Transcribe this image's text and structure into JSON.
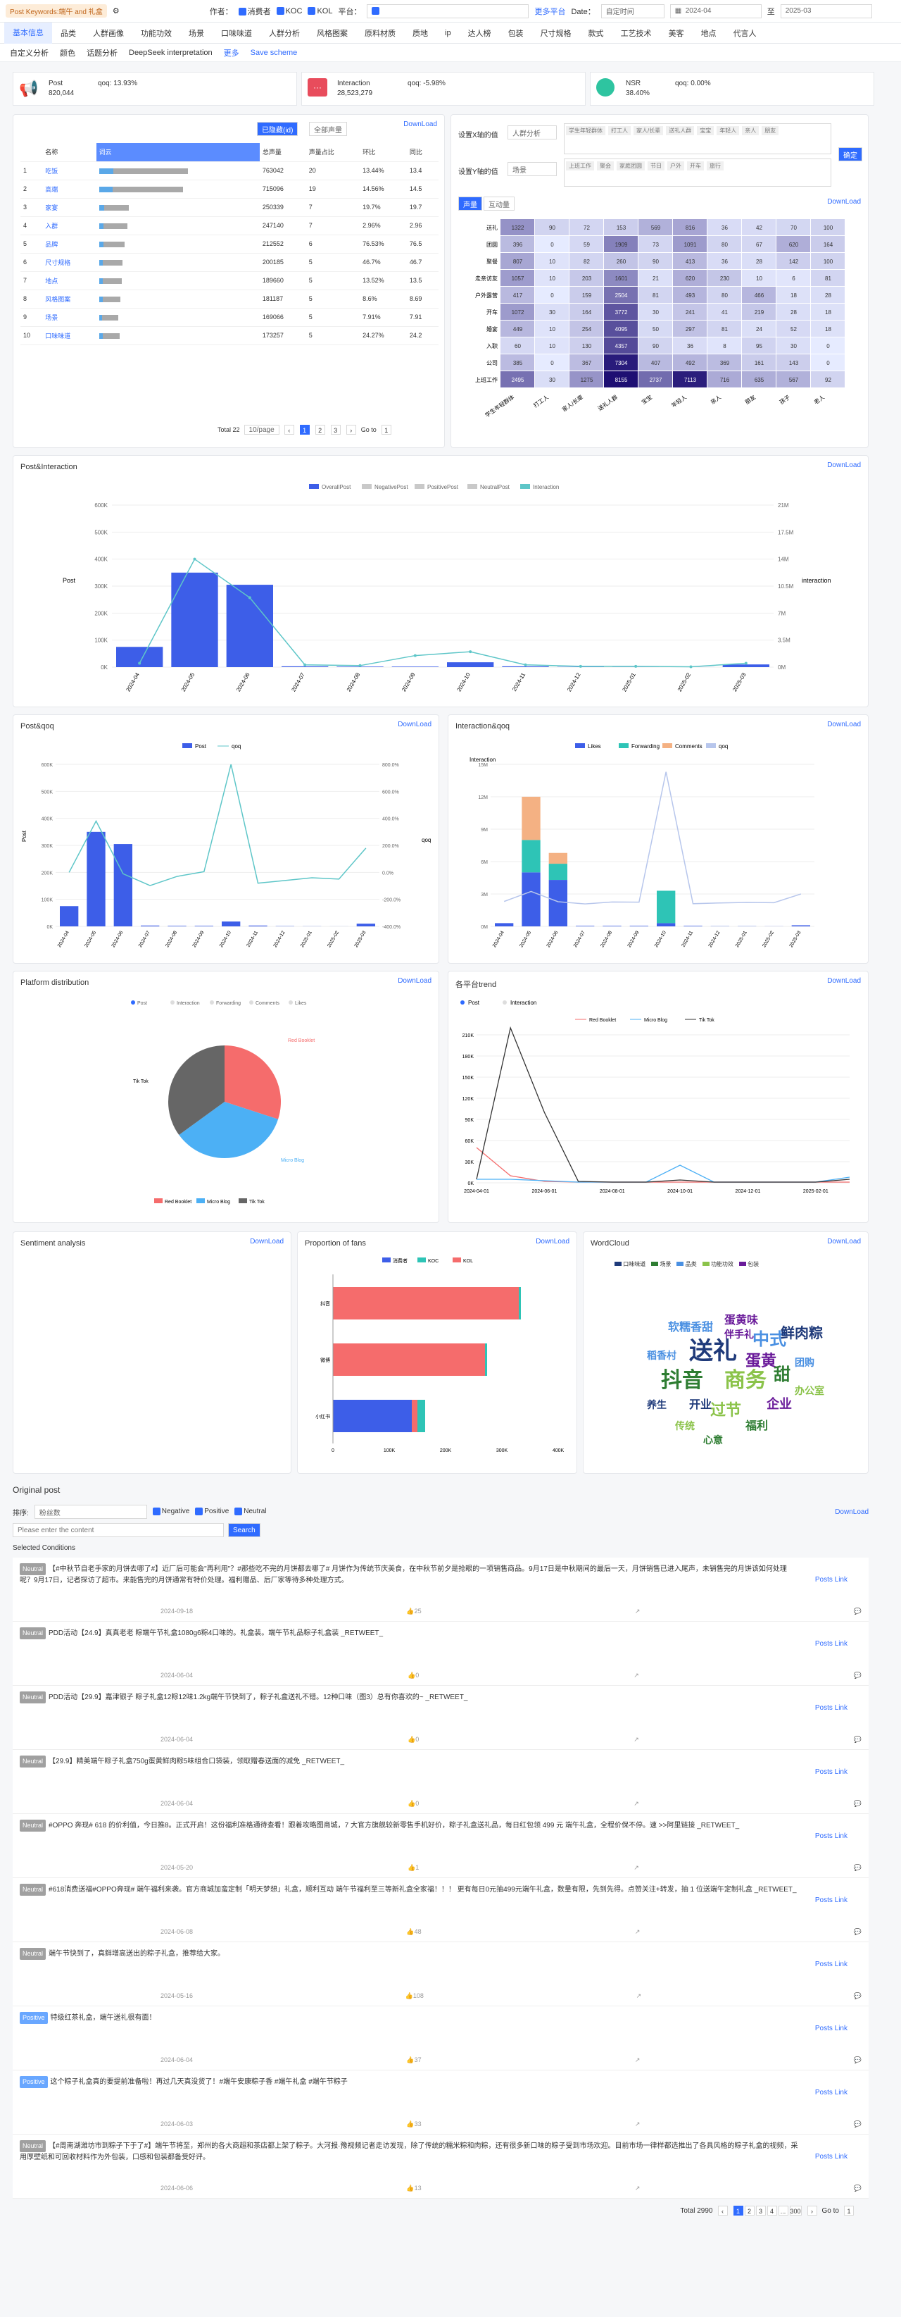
{
  "topbar": {
    "tag": "Post Keywords:端午 and 礼盒",
    "author_label": "作者：",
    "f1": "消费者",
    "f2": "KOC",
    "f3": "KOL",
    "platform_label": "平台：",
    "more_platform": "更多平台",
    "date_label": "Date：",
    "date_mode": "自定时间",
    "date_from": "2024-04",
    "date_to": "至",
    "date_end": "2025-03"
  },
  "tabs": [
    "基本信息",
    "品类",
    "人群画像",
    "功能功效",
    "场景",
    "口味味道",
    "人群分析",
    "风格图案",
    "原料材质",
    "质地",
    "ip",
    "达人榜",
    "包装",
    "尺寸规格",
    "款式",
    "工艺技术",
    "美客",
    "地点",
    "代言人"
  ],
  "subtabs": [
    "自定义分析",
    "颜色",
    "话题分析",
    "DeepSeek interpretation",
    "更多",
    "Save scheme"
  ],
  "kpi": [
    {
      "name": "Post",
      "value": "820,044",
      "qoq": "qoq: 13.93%"
    },
    {
      "name": "Interaction",
      "value": "28,523,279",
      "qoq": "qoq: -5.98%"
    },
    {
      "name": "NSR",
      "value": "38.40%",
      "qoq": "qoq: 0.00%"
    }
  ],
  "rank": {
    "filter1": "已隐藏(id)",
    "filter2": "全部声量",
    "download": "DownLoad",
    "headers": [
      "",
      "名称",
      "词云",
      "总声量",
      "声量占比",
      "环比",
      "同比"
    ],
    "rows": [
      {
        "n": "1",
        "name": "吃饭",
        "v": "763042",
        "share": "20",
        "qoq": "13.44%",
        "yoy": "13.4",
        "w": 100
      },
      {
        "n": "2",
        "name": "高端",
        "v": "715096",
        "share": "19",
        "qoq": "14.56%",
        "yoy": "14.5",
        "w": 94
      },
      {
        "n": "3",
        "name": "家宴",
        "v": "250339",
        "share": "7",
        "qoq": "19.7%",
        "yoy": "19.7",
        "w": 33
      },
      {
        "n": "4",
        "name": "入群",
        "v": "247140",
        "share": "7",
        "qoq": "2.96%",
        "yoy": "2.96",
        "w": 32
      },
      {
        "n": "5",
        "name": "品牌",
        "v": "212552",
        "share": "6",
        "qoq": "76.53%",
        "yoy": "76.5",
        "w": 28
      },
      {
        "n": "6",
        "name": "尺寸规格",
        "v": "200185",
        "share": "5",
        "qoq": "46.7%",
        "yoy": "46.7",
        "w": 26
      },
      {
        "n": "7",
        "name": "地点",
        "v": "189660",
        "share": "5",
        "qoq": "13.52%",
        "yoy": "13.5",
        "w": 25
      },
      {
        "n": "8",
        "name": "风格图案",
        "v": "181187",
        "share": "5",
        "qoq": "8.6%",
        "yoy": "8.69",
        "w": 24
      },
      {
        "n": "9",
        "name": "场景",
        "v": "169066",
        "share": "5",
        "qoq": "7.91%",
        "yoy": "7.91",
        "w": 22
      },
      {
        "n": "10",
        "name": "口味味道",
        "v": "173257",
        "share": "5",
        "qoq": "24.27%",
        "yoy": "24.2",
        "w": 23
      }
    ],
    "total": "Total 22",
    "pagesize": "10/page",
    "goto": "Go to",
    "gotov": "1"
  },
  "heat": {
    "x_label": "设置X轴的值",
    "x_val": "人群分析",
    "y_label": "设置Y轴的值",
    "y_val": "场景",
    "tags1": [
      "学生年轻群体",
      "打工人",
      "家人/长辈",
      "送礼人群",
      "宝宝",
      "年轻人",
      "亲人",
      "朋友"
    ],
    "tags2": [
      "上班工作",
      "聚会",
      "家庭团圆",
      "节日",
      "户外",
      "开车",
      "旅行"
    ],
    "confirm": "确定",
    "tab1": "声量",
    "tab2": "互动量",
    "download": "DownLoad",
    "rows": [
      "送礼",
      "团圆",
      "聚餐",
      "走亲访友",
      "户外露营",
      "开车",
      "婚宴",
      "入职",
      "公司",
      "上班工作"
    ],
    "cols": [
      "学生年轻群体",
      "打工人",
      "家人/长辈",
      "送礼人群",
      "宝宝",
      "年轻人",
      "亲人",
      "朋友",
      "孩子",
      "老人"
    ],
    "vals": [
      [
        1322,
        90,
        72,
        153,
        569,
        816,
        36,
        42,
        70,
        100
      ],
      [
        396,
        0,
        59,
        1909,
        73,
        1091,
        80,
        67,
        620,
        164
      ],
      [
        807,
        10,
        82,
        260,
        90,
        413,
        36,
        28,
        142,
        100
      ],
      [
        1057,
        10,
        203,
        1601,
        21,
        620,
        230,
        10,
        6,
        81
      ],
      [
        417,
        0,
        159,
        2504,
        81,
        493,
        80,
        466,
        18,
        28
      ],
      [
        1072,
        30,
        164,
        3772,
        30,
        241,
        41,
        219,
        28,
        18
      ],
      [
        449,
        10,
        254,
        4095,
        50,
        297,
        81,
        24,
        52,
        18
      ],
      [
        60,
        10,
        130,
        4357,
        90,
        36,
        8,
        95,
        30,
        0
      ],
      [
        385,
        0,
        367,
        7304,
        407,
        492,
        369,
        161,
        143,
        0
      ],
      [
        2495,
        30,
        1275,
        8155,
        2737,
        7113,
        716,
        635,
        567,
        92
      ]
    ]
  },
  "pi": {
    "title": "Post&Interaction",
    "download": "DownLoad",
    "legend": [
      "OverallPost",
      "NegativePost",
      "PositivePost",
      "NeutralPost",
      "Interaction"
    ],
    "ylabel_left": "Post",
    "ylabel_right": "interaction"
  },
  "pq": {
    "title": "Post&qoq",
    "download": "DownLoad",
    "legend": [
      "Post",
      "qoq"
    ],
    "ylabel": "Post",
    "ylabel_r": "qoq"
  },
  "iq": {
    "title": "Interaction&qoq",
    "download": "DownLoad",
    "legend": [
      "Likes",
      "Forwarding",
      "Comments",
      "qoq"
    ],
    "ylabel": "Interaction"
  },
  "plat": {
    "title": "Platform distribution",
    "download": "DownLoad",
    "radios": [
      "Post",
      "Interaction",
      "Forwarding",
      "Comments",
      "Likes"
    ],
    "legend": [
      "Red Booklet",
      "Micro Blog",
      "Tik Tok"
    ]
  },
  "trend": {
    "title": "各平台trend",
    "download": "DownLoad",
    "radios": [
      "Post",
      "Interaction"
    ],
    "legend": [
      "Red Booklet",
      "Micro Blog",
      "Tik Tok"
    ]
  },
  "senti": {
    "title": "Sentiment analysis",
    "download": "DownLoad"
  },
  "fans": {
    "title": "Proportion of fans",
    "download": "DownLoad",
    "legend": [
      "消费者",
      "KOC",
      "KOL"
    ]
  },
  "wc": {
    "title": "WordCloud",
    "download": "DownLoad",
    "words": [
      "送礼",
      "抖音",
      "中式",
      "商务",
      "蛋黄",
      "鲜肉粽",
      "甜",
      "软糯香甜",
      "过节",
      "企业",
      "开业",
      "福利",
      "稻香村",
      "办公室",
      "蛋黄味",
      "养生",
      "心意",
      "团购",
      "传统",
      "伴手礼"
    ],
    "legend": [
      "口味味道",
      "场景",
      "品类",
      "功能功效",
      "包装"
    ]
  },
  "orig": {
    "title": "Original post",
    "sort_label": "排序:",
    "sort_val": "粉丝数",
    "neg": "Negative",
    "pos": "Positive",
    "neu": "Neutral",
    "download": "DownLoad",
    "placeholder": "Please enter the content",
    "search": "Search",
    "link": "Posts Link",
    "posts": [
      {
        "s": "Neutral",
        "t": "【#中秋节自老手家的月饼去哪了#】近厂后可能会\"再利用\"？#那些吃不完的月饼都去哪了# 月饼作为传统节庆美食，在中秋节前夕是抢眼的一项销售商品。9月17日是中秋期间的最后一天，月饼销售已进入尾声，未销售完的月饼该如何处理呢？9月17日，记者探访了超市。来能售完的月饼通常有特价处理。福利赠品、后厂家等待多种处理方式。",
        "d": "2024-09-18",
        "a": "25"
      },
      {
        "s": "Neutral",
        "t": "PDD活动【24.9】真真老老 粽端午节礼盒1080g6粽4口味的。礼盒装。端午节礼品粽子礼盒装 _RETWEET_",
        "d": "2024-06-04",
        "a": "0"
      },
      {
        "s": "Neutral",
        "t": "PDD活动【29.9】嘉津银子 粽子礼盒12粽12味1.2kg端午节快到了，粽子礼盒送礼不错。12种口味（图3）总有你喜欢的~ _RETWEET_",
        "d": "2024-06-04",
        "a": "0"
      },
      {
        "s": "Neutral",
        "t": "【29.9】精美端午粽子礼盒750g蛋黄鲜肉粽5味组合口袋装，领取赠春送面的减免 _RETWEET_",
        "d": "2024-06-04",
        "a": "0"
      },
      {
        "s": "Neutral",
        "t": "#OPPO 奔现# 618 的价利值，今日推8。正式开启！这份福利准格通待查看！跟着攻略图商城，7 大官方旗舰较新零售手机好价，粽子礼盒送礼品，每日红包领 499 元 端午礼盒，全程价保不停。速 >>阿里链接 _RETWEET_",
        "d": "2024-05-20",
        "a": "1"
      },
      {
        "s": "Neutral",
        "t": "#618消费送福#OPPO奔现# 端午福利来袭。官方商城加蛮定制「明天梦想」礼盒，顺利互动 端午节福利至三等新礼盒全家福！！！ 更有每日0元抽499元端午礼盒，数量有限，先到先得。点赞关注+转发，抽 1 位送端午定制礼盒 _RETWEET_",
        "d": "2024-06-08",
        "a": "48"
      },
      {
        "s": "Neutral",
        "t": "端午节快到了，真鲜增高送出的粽子礼盒，推荐给大家。",
        "d": "2024-05-16",
        "a": "108"
      },
      {
        "s": "Positive",
        "t": "特级红茶礼盒，端午送礼很有面！",
        "d": "2024-06-04",
        "a": "37"
      },
      {
        "s": "Positive",
        "t": "这个粽子礼盒真的要提前准备啦！再过几天真没货了！#端午安康粽子香 #端午礼盒 #端午节粽子",
        "d": "2024-06-03",
        "a": "33"
      },
      {
        "s": "Neutral",
        "t": "【#周南湖潍坊市到粽子下于了#】端午节将至，郑州的各大商超和茶店都上架了粽子。大河报·豫视频记者走访发现，除了传统的糯米粽和肉粽，还有很多新口味的粽子受到市场欢迎。目前市场一律样都选推出了各具风格的粽子礼盒的视频，采用厚壁纸和可回收材料作为外包装，口感和包装都备受好评。",
        "d": "2024-06-06",
        "a": "13"
      }
    ],
    "total": "Total 2990",
    "pages": [
      "1",
      "2",
      "3",
      "4",
      "...",
      "300"
    ],
    "goto": "Go to",
    "gotov": "1",
    "selected": "Selected Conditions"
  }
}
